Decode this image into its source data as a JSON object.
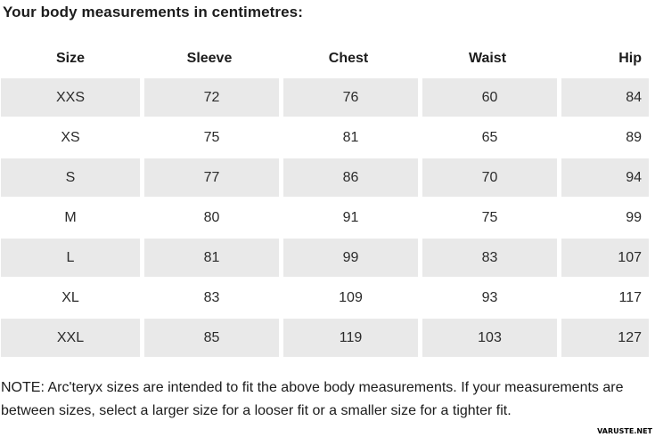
{
  "title": "Your body measurements in centimetres:",
  "chart_data": {
    "type": "table",
    "title": "Your body measurements in centimetres:",
    "columns": [
      "Size",
      "Sleeve",
      "Chest",
      "Waist",
      "Hip"
    ],
    "rows": [
      [
        "XXS",
        72,
        76,
        60,
        84
      ],
      [
        "XS",
        75,
        81,
        65,
        89
      ],
      [
        "S",
        77,
        86,
        70,
        94
      ],
      [
        "M",
        80,
        91,
        75,
        99
      ],
      [
        "L",
        81,
        99,
        83,
        107
      ],
      [
        "XL",
        83,
        109,
        93,
        117
      ],
      [
        "XXL",
        85,
        119,
        103,
        127
      ]
    ],
    "layout": {
      "shaded_row_color": "#e9e9e9",
      "plain_row_color": "#ffffff",
      "shaded_rows": [
        "XXS",
        "S",
        "L",
        "XXL"
      ],
      "last_column_alignment": "right",
      "other_columns_alignment": "center"
    }
  },
  "note": "NOTE: Arc'teryx sizes are intended to fit the above body measurements. If your measurements are between sizes, select a larger size for a looser fit or a smaller size for a tighter fit.",
  "watermark": "VARUSTE.NET",
  "colors": {
    "background": "#ffffff",
    "row_shaded": "#e9e9e9",
    "text": "#212121"
  }
}
